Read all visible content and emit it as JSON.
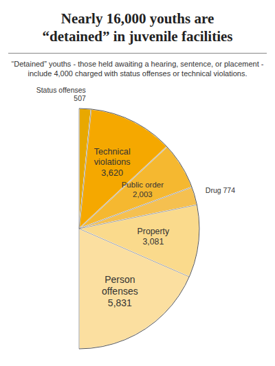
{
  "chart_data": {
    "type": "pie",
    "title": "Nearly 16,000 youths are\n“detained” in juvenile facilities",
    "subtitle": "“Detained” youths - those held awaiting a hearing, sentence, or placement -\ninclude 4,000 charged with status offenses or technical violations.",
    "categories": [
      "Status offenses\n507",
      "Technical\nviolations\n3,620",
      "Public order\n2,003",
      "Drug 774",
      "Property\n3,081",
      "Person\noffenses\n5,831"
    ],
    "values": [
      507,
      3620,
      2003,
      774,
      3081,
      5831
    ],
    "colors": [
      "#E8A800",
      "#F5A800",
      "#F5B830",
      "#F5C050",
      "#FADA8C",
      "#FBDFA0"
    ]
  }
}
